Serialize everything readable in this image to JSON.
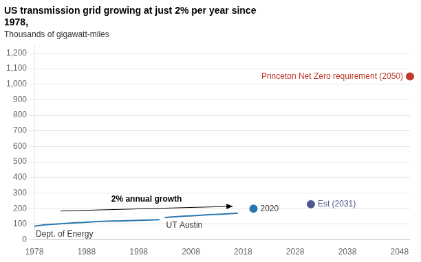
{
  "chart_data": {
    "type": "line",
    "title": "US transmission grid growing at just 2% per year since\n1978,",
    "subtitle": "Thousands of gigawatt-miles",
    "series": [
      {
        "name": "Dept. of Energy",
        "type": "line",
        "color": "#2878b0",
        "x": [
          1978,
          1979,
          1980,
          1981,
          1982,
          1983,
          1984,
          1985,
          1986,
          1987,
          1988,
          1989,
          1990,
          1991,
          1992,
          1993,
          1994,
          1995,
          1996,
          1997,
          1998,
          1999,
          2000,
          2001,
          2002
        ],
        "values": [
          88,
          92,
          96,
          99,
          101,
          103,
          105,
          107,
          109,
          111,
          113,
          115,
          117,
          118,
          119,
          120,
          121,
          122,
          123,
          124,
          125,
          126,
          127,
          128,
          129
        ]
      },
      {
        "name": "UT Austin",
        "type": "line",
        "color": "#2878b0",
        "x": [
          2003,
          2004,
          2005,
          2006,
          2007,
          2008,
          2009,
          2010,
          2011,
          2012,
          2013,
          2014,
          2015,
          2016,
          2017
        ],
        "values": [
          143,
          146,
          148,
          150,
          152,
          154,
          156,
          158,
          160,
          162,
          163,
          165,
          167,
          169,
          171
        ]
      },
      {
        "name": "2020",
        "type": "scatter",
        "color": "#2878b0",
        "x": [
          2020
        ],
        "values": [
          200
        ]
      },
      {
        "name": "Est (2031)",
        "type": "scatter",
        "color": "#4b5a8b",
        "x": [
          2031
        ],
        "values": [
          228
        ]
      },
      {
        "name": "Princeton Net Zero requirement (2050)",
        "type": "scatter",
        "color": "#c0392b",
        "x": [
          2050
        ],
        "values": [
          1050
        ]
      }
    ],
    "annotations": [
      {
        "text": "2% annual growth",
        "x": [
          1983,
          2016
        ],
        "values": [
          185,
          215
        ]
      }
    ],
    "xlim": [
      1978,
      2050
    ],
    "xticks": [
      1978,
      1988,
      1998,
      2008,
      2018,
      2028,
      2038,
      2048
    ],
    "ylim": [
      0,
      1250
    ],
    "yticks": [
      0,
      100,
      200,
      300,
      400,
      500,
      600,
      700,
      800,
      900,
      {
        "value": 1000,
        "label": "1,000"
      },
      {
        "value": 1100,
        "label": "1,100"
      },
      {
        "value": 1200,
        "label": "1,200"
      }
    ],
    "grid": true
  }
}
